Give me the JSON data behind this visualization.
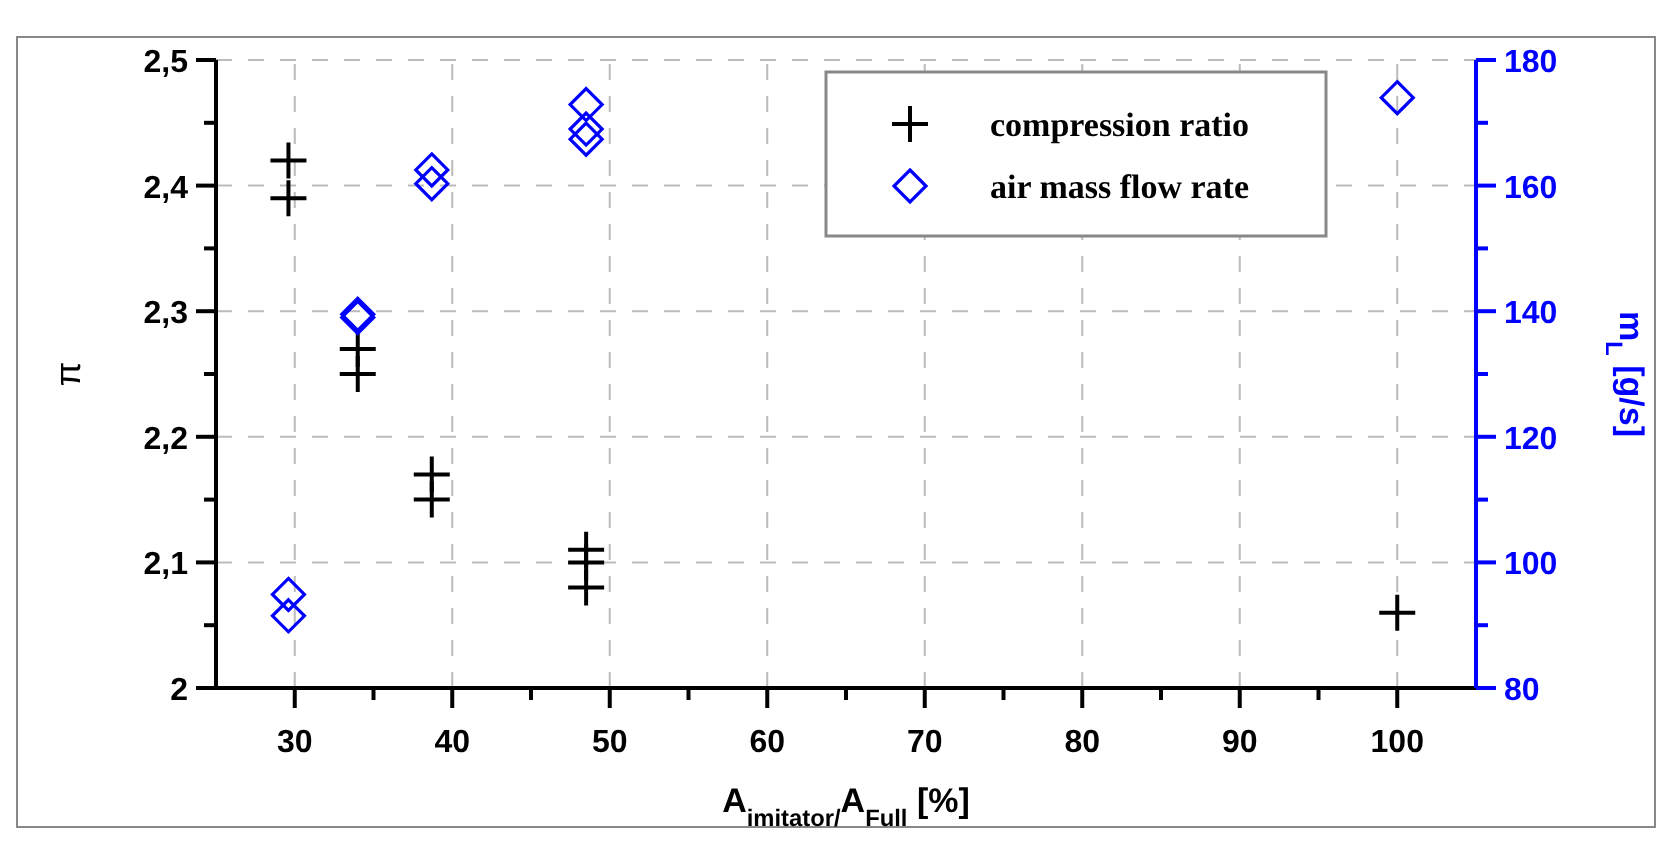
{
  "chart_data": {
    "type": "scatter",
    "xlabel": "A$_{imitator/}$A$_{Full}$ [%]",
    "ylabel": "π",
    "y2label": "m$_{L}$ [g/s]",
    "xlim": [
      25,
      105
    ],
    "xticks": [
      30,
      40,
      50,
      60,
      70,
      80,
      90,
      100
    ],
    "ylim": [
      2,
      2.5
    ],
    "yticks": [
      {
        "value": 2,
        "label": "2"
      },
      {
        "value": 2.1,
        "label": "2,1"
      },
      {
        "value": 2.2,
        "label": "2,2"
      },
      {
        "value": 2.3,
        "label": "2,3"
      },
      {
        "value": 2.4,
        "label": "2,4"
      },
      {
        "value": 2.5,
        "label": "2,5"
      }
    ],
    "y2lim": [
      80,
      180
    ],
    "y2ticks": [
      80,
      100,
      120,
      140,
      160,
      180
    ],
    "grid": true,
    "legend": "top right",
    "series": [
      {
        "name": "compression ratio",
        "color": "#000000",
        "marker": "cross",
        "x": [
          29.6,
          29.6,
          34,
          34,
          38.7,
          38.7,
          48.5,
          48.5,
          48.5,
          100
        ],
        "values": [
          2.42,
          2.39,
          2.27,
          2.25,
          2.17,
          2.15,
          2.11,
          2.1,
          2.08,
          2.06
        ]
      },
      {
        "name": "air mass flow rate",
        "color": "#0000ff",
        "marker": "diamond",
        "axis": "y2",
        "x": [
          29.6,
          29.6,
          34,
          34,
          38.7,
          38.7,
          48.5,
          48.5,
          48.5,
          100
        ],
        "values": [
          94.9,
          91.5,
          139.5,
          139,
          162.5,
          160.3,
          172.9,
          169,
          167.4,
          174
        ]
      }
    ]
  }
}
